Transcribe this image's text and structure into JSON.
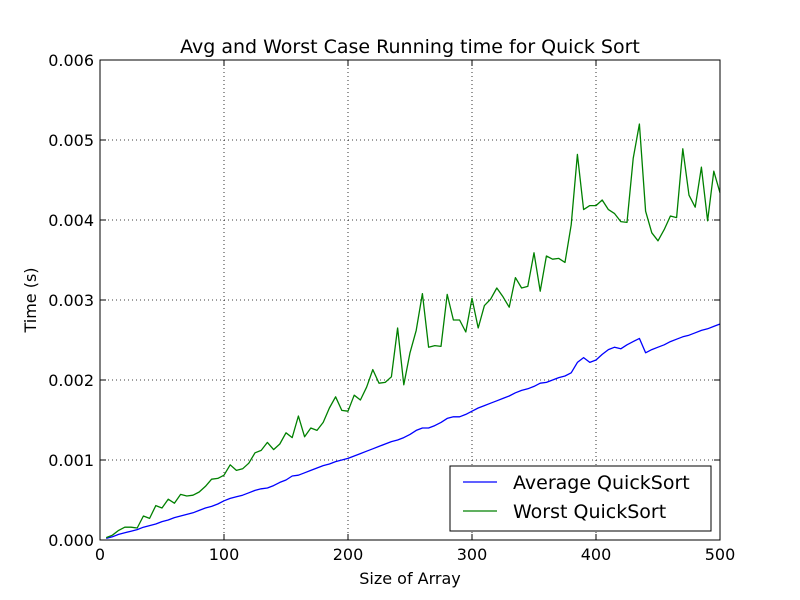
{
  "chart_data": {
    "type": "line",
    "title": "Avg and Worst Case Running time for Quick Sort",
    "xlabel": "Size of Array",
    "ylabel": "Time (s)",
    "xlim": [
      0,
      500
    ],
    "ylim": [
      0,
      0.006
    ],
    "xticks": [
      "0",
      "100",
      "200",
      "300",
      "400",
      "500"
    ],
    "yticks": [
      "0.000",
      "0.001",
      "0.002",
      "0.003",
      "0.004",
      "0.005",
      "0.006"
    ],
    "grid": true,
    "grid_style": "dotted",
    "legend_position": "lower-right",
    "series": [
      {
        "name": "Average QuickSort",
        "color": "#0000ff",
        "x": [
          5,
          10,
          15,
          20,
          25,
          30,
          35,
          40,
          45,
          50,
          55,
          60,
          65,
          70,
          75,
          80,
          85,
          90,
          95,
          100,
          105,
          110,
          115,
          120,
          125,
          130,
          135,
          140,
          145,
          150,
          155,
          160,
          165,
          170,
          175,
          180,
          185,
          190,
          195,
          200,
          205,
          210,
          215,
          220,
          225,
          230,
          235,
          240,
          245,
          250,
          255,
          260,
          265,
          270,
          275,
          280,
          285,
          290,
          295,
          300,
          305,
          310,
          315,
          320,
          325,
          330,
          335,
          340,
          345,
          350,
          355,
          360,
          365,
          370,
          375,
          380,
          385,
          390,
          395,
          400,
          405,
          410,
          415,
          420,
          425,
          430,
          435,
          440,
          445,
          450,
          455,
          460,
          465,
          470,
          475,
          480,
          485,
          490,
          495,
          500
        ],
        "values": [
          2e-05,
          4e-05,
          7e-05,
          9e-05,
          0.00011,
          0.00013,
          0.00016,
          0.00018,
          0.0002,
          0.00023,
          0.00025,
          0.00028,
          0.0003,
          0.00032,
          0.00034,
          0.00037,
          0.0004,
          0.00042,
          0.00045,
          0.00049,
          0.00052,
          0.00054,
          0.00056,
          0.00059,
          0.00062,
          0.00064,
          0.00065,
          0.00068,
          0.00072,
          0.00075,
          0.0008,
          0.00081,
          0.00084,
          0.00087,
          0.0009,
          0.00093,
          0.00095,
          0.00098,
          0.001,
          0.00102,
          0.00105,
          0.00108,
          0.00111,
          0.00114,
          0.00117,
          0.0012,
          0.00123,
          0.00125,
          0.00128,
          0.00132,
          0.00137,
          0.0014,
          0.0014,
          0.00143,
          0.00147,
          0.00152,
          0.00154,
          0.00154,
          0.00157,
          0.00161,
          0.00165,
          0.00168,
          0.00171,
          0.00174,
          0.00177,
          0.0018,
          0.00184,
          0.00187,
          0.00189,
          0.00192,
          0.00196,
          0.00197,
          0.002,
          0.00203,
          0.00205,
          0.00209,
          0.00222,
          0.00228,
          0.00222,
          0.00225,
          0.00232,
          0.00238,
          0.00241,
          0.00239,
          0.00244,
          0.00248,
          0.00252,
          0.00234,
          0.00238,
          0.00241,
          0.00244,
          0.00248,
          0.00251,
          0.00254,
          0.00256,
          0.00259,
          0.00262,
          0.00264,
          0.00267,
          0.0027
        ]
      },
      {
        "name": "Worst QuickSort",
        "color": "#008000",
        "x": [
          5,
          10,
          15,
          20,
          25,
          30,
          35,
          40,
          45,
          50,
          55,
          60,
          65,
          70,
          75,
          80,
          85,
          90,
          95,
          100,
          105,
          110,
          115,
          120,
          125,
          130,
          135,
          140,
          145,
          150,
          155,
          160,
          165,
          170,
          175,
          180,
          185,
          190,
          195,
          200,
          205,
          210,
          215,
          220,
          225,
          230,
          235,
          240,
          245,
          250,
          255,
          260,
          265,
          270,
          275,
          280,
          285,
          290,
          295,
          300,
          305,
          310,
          315,
          320,
          325,
          330,
          335,
          340,
          345,
          350,
          355,
          360,
          365,
          370,
          375,
          380,
          385,
          390,
          395,
          400,
          405,
          410,
          415,
          420,
          425,
          430,
          435,
          440,
          445,
          450,
          455,
          460,
          465,
          470,
          475,
          480,
          485,
          490,
          495,
          500
        ],
        "values": [
          3e-05,
          6e-05,
          0.00012,
          0.00016,
          0.00016,
          0.00015,
          0.0003,
          0.00027,
          0.00043,
          0.0004,
          0.00051,
          0.00046,
          0.00057,
          0.00055,
          0.00056,
          0.0006,
          0.00067,
          0.00076,
          0.00077,
          0.00081,
          0.00094,
          0.00087,
          0.00089,
          0.00096,
          0.00109,
          0.00112,
          0.00122,
          0.00113,
          0.0012,
          0.00134,
          0.00128,
          0.00155,
          0.00129,
          0.0014,
          0.00137,
          0.00147,
          0.00165,
          0.00179,
          0.00162,
          0.00161,
          0.00181,
          0.00175,
          0.00191,
          0.00213,
          0.00196,
          0.00197,
          0.00204,
          0.00265,
          0.00194,
          0.00234,
          0.00262,
          0.00308,
          0.00241,
          0.00243,
          0.00242,
          0.00307,
          0.00275,
          0.00275,
          0.0026,
          0.00302,
          0.00265,
          0.00293,
          0.00301,
          0.00315,
          0.00304,
          0.00291,
          0.00328,
          0.00315,
          0.00317,
          0.00359,
          0.00311,
          0.00355,
          0.00351,
          0.00352,
          0.00347,
          0.00394,
          0.00482,
          0.00413,
          0.00418,
          0.00418,
          0.00425,
          0.00413,
          0.00408,
          0.00398,
          0.00397,
          0.00477,
          0.0052,
          0.00411,
          0.00384,
          0.00374,
          0.00388,
          0.00405,
          0.00403,
          0.00489,
          0.00431,
          0.00416,
          0.00466,
          0.00399,
          0.00461,
          0.00434
        ]
      }
    ]
  }
}
